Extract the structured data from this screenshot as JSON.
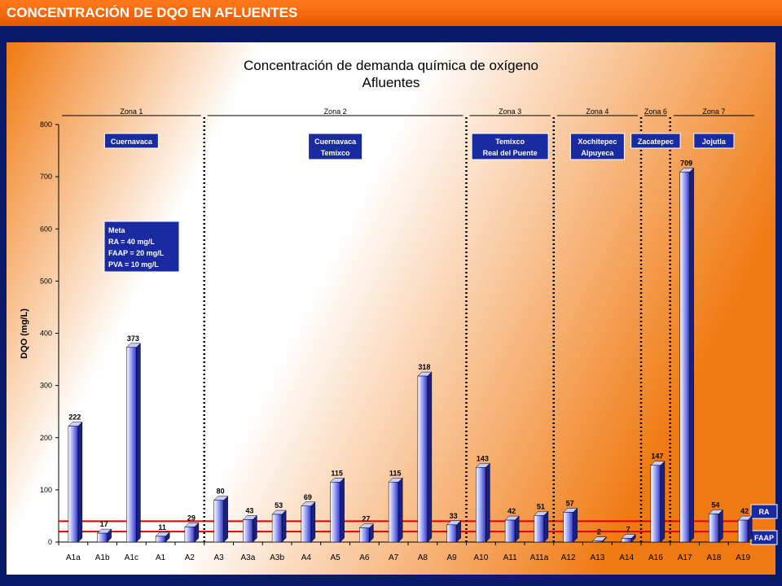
{
  "header": {
    "title": "CONCENTRACIÓN DE DQO EN AFLUENTES"
  },
  "colors": {
    "header": "#f26b0a",
    "frame": "#0a1a6a",
    "bar": "#2a33c8",
    "label_box": "#1a2aa0",
    "threshold": "#e00000"
  },
  "chart_data": {
    "type": "bar",
    "title": "Concentración de demanda química de oxígeno",
    "subtitle": "Afluentes",
    "xlabel": "",
    "ylabel": "DQO (mg/L)",
    "ylim": [
      0,
      800
    ],
    "yticks": [
      "0",
      "100",
      "200",
      "300",
      "400",
      "500",
      "600",
      "700",
      "800"
    ],
    "grid": false,
    "categories": [
      "A1a",
      "A1b",
      "A1c",
      "A1",
      "A2",
      "A3",
      "A3a",
      "A3b",
      "A4",
      "A5",
      "A6",
      "A7",
      "A8",
      "A9",
      "A10",
      "A11",
      "A11a",
      "A12",
      "A13",
      "A14",
      "A16",
      "A17",
      "A18",
      "A19"
    ],
    "values": [
      222,
      17,
      373,
      11,
      29,
      80,
      43,
      53,
      69,
      115,
      27,
      115,
      318,
      33,
      143,
      42,
      51,
      57,
      2,
      7,
      147,
      709,
      54,
      42
    ],
    "data_labels": [
      "222",
      "17",
      "373",
      "11",
      "29",
      "80",
      "43",
      "53",
      "69",
      "115",
      "27",
      "115",
      "318",
      "33",
      "143",
      "42",
      "51",
      "57",
      "2",
      "7",
      "147",
      "709",
      "54",
      "42"
    ],
    "zones": [
      {
        "label": "Zona 1",
        "first": 0,
        "last": 4,
        "box": [
          "Cuernavaca"
        ]
      },
      {
        "label": "Zona 2",
        "first": 5,
        "last": 13,
        "box": [
          "Cuernavaca",
          "Temixco"
        ]
      },
      {
        "label": "Zona 3",
        "first": 14,
        "last": 16,
        "box": [
          "Temixco",
          "Real del Puente"
        ]
      },
      {
        "label": "Zona 4",
        "first": 17,
        "last": 19,
        "box": [
          "Xochitepec",
          "Alpuyeca"
        ]
      },
      {
        "label": "Zona 6",
        "first": 20,
        "last": 20,
        "box": [
          "Zacatepec"
        ]
      },
      {
        "label": "Zona 7",
        "first": 21,
        "last": 23,
        "box": [
          "Jojutla"
        ]
      }
    ],
    "thresholds": [
      {
        "label": "RA",
        "value": 40
      },
      {
        "label": "FAAP",
        "value": 20
      }
    ],
    "meta_box": [
      "Meta",
      "RA = 40 mg/L",
      "FAAP = 20 mg/L",
      "PVA = 10 mg/L"
    ]
  }
}
